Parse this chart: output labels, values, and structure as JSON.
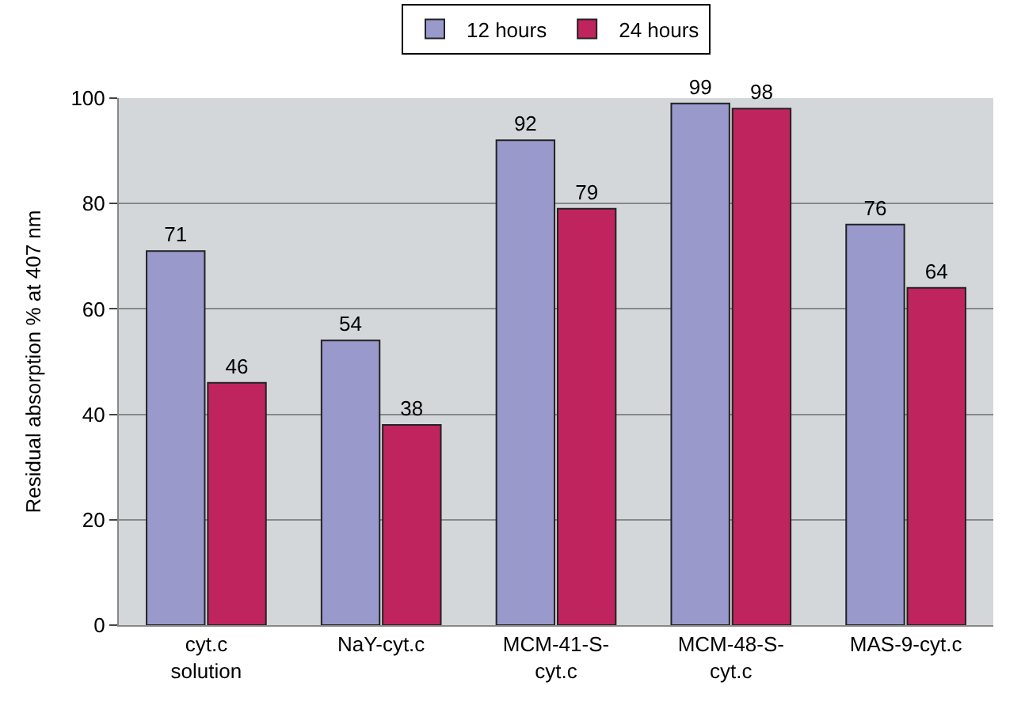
{
  "chart_data": {
    "type": "bar",
    "ylabel": "Residual absorption % at 407 nm",
    "categories": [
      "cyt.c solution",
      "NaY-cyt.c",
      "MCM-41-S-cyt.c",
      "MCM-48-S-cyt.c",
      "MAS-9-cyt.c"
    ],
    "series": [
      {
        "name": "12 hours",
        "color": "#9999cc",
        "values": [
          71,
          54,
          92,
          99,
          76
        ]
      },
      {
        "name": "24 hours",
        "color": "#c0245e",
        "values": [
          46,
          38,
          79,
          98,
          64
        ]
      }
    ],
    "ylim": [
      0,
      100
    ],
    "yticks": [
      0,
      20,
      40,
      60,
      80,
      100
    ],
    "grid": "y",
    "legend": "top",
    "data_labels": true
  }
}
